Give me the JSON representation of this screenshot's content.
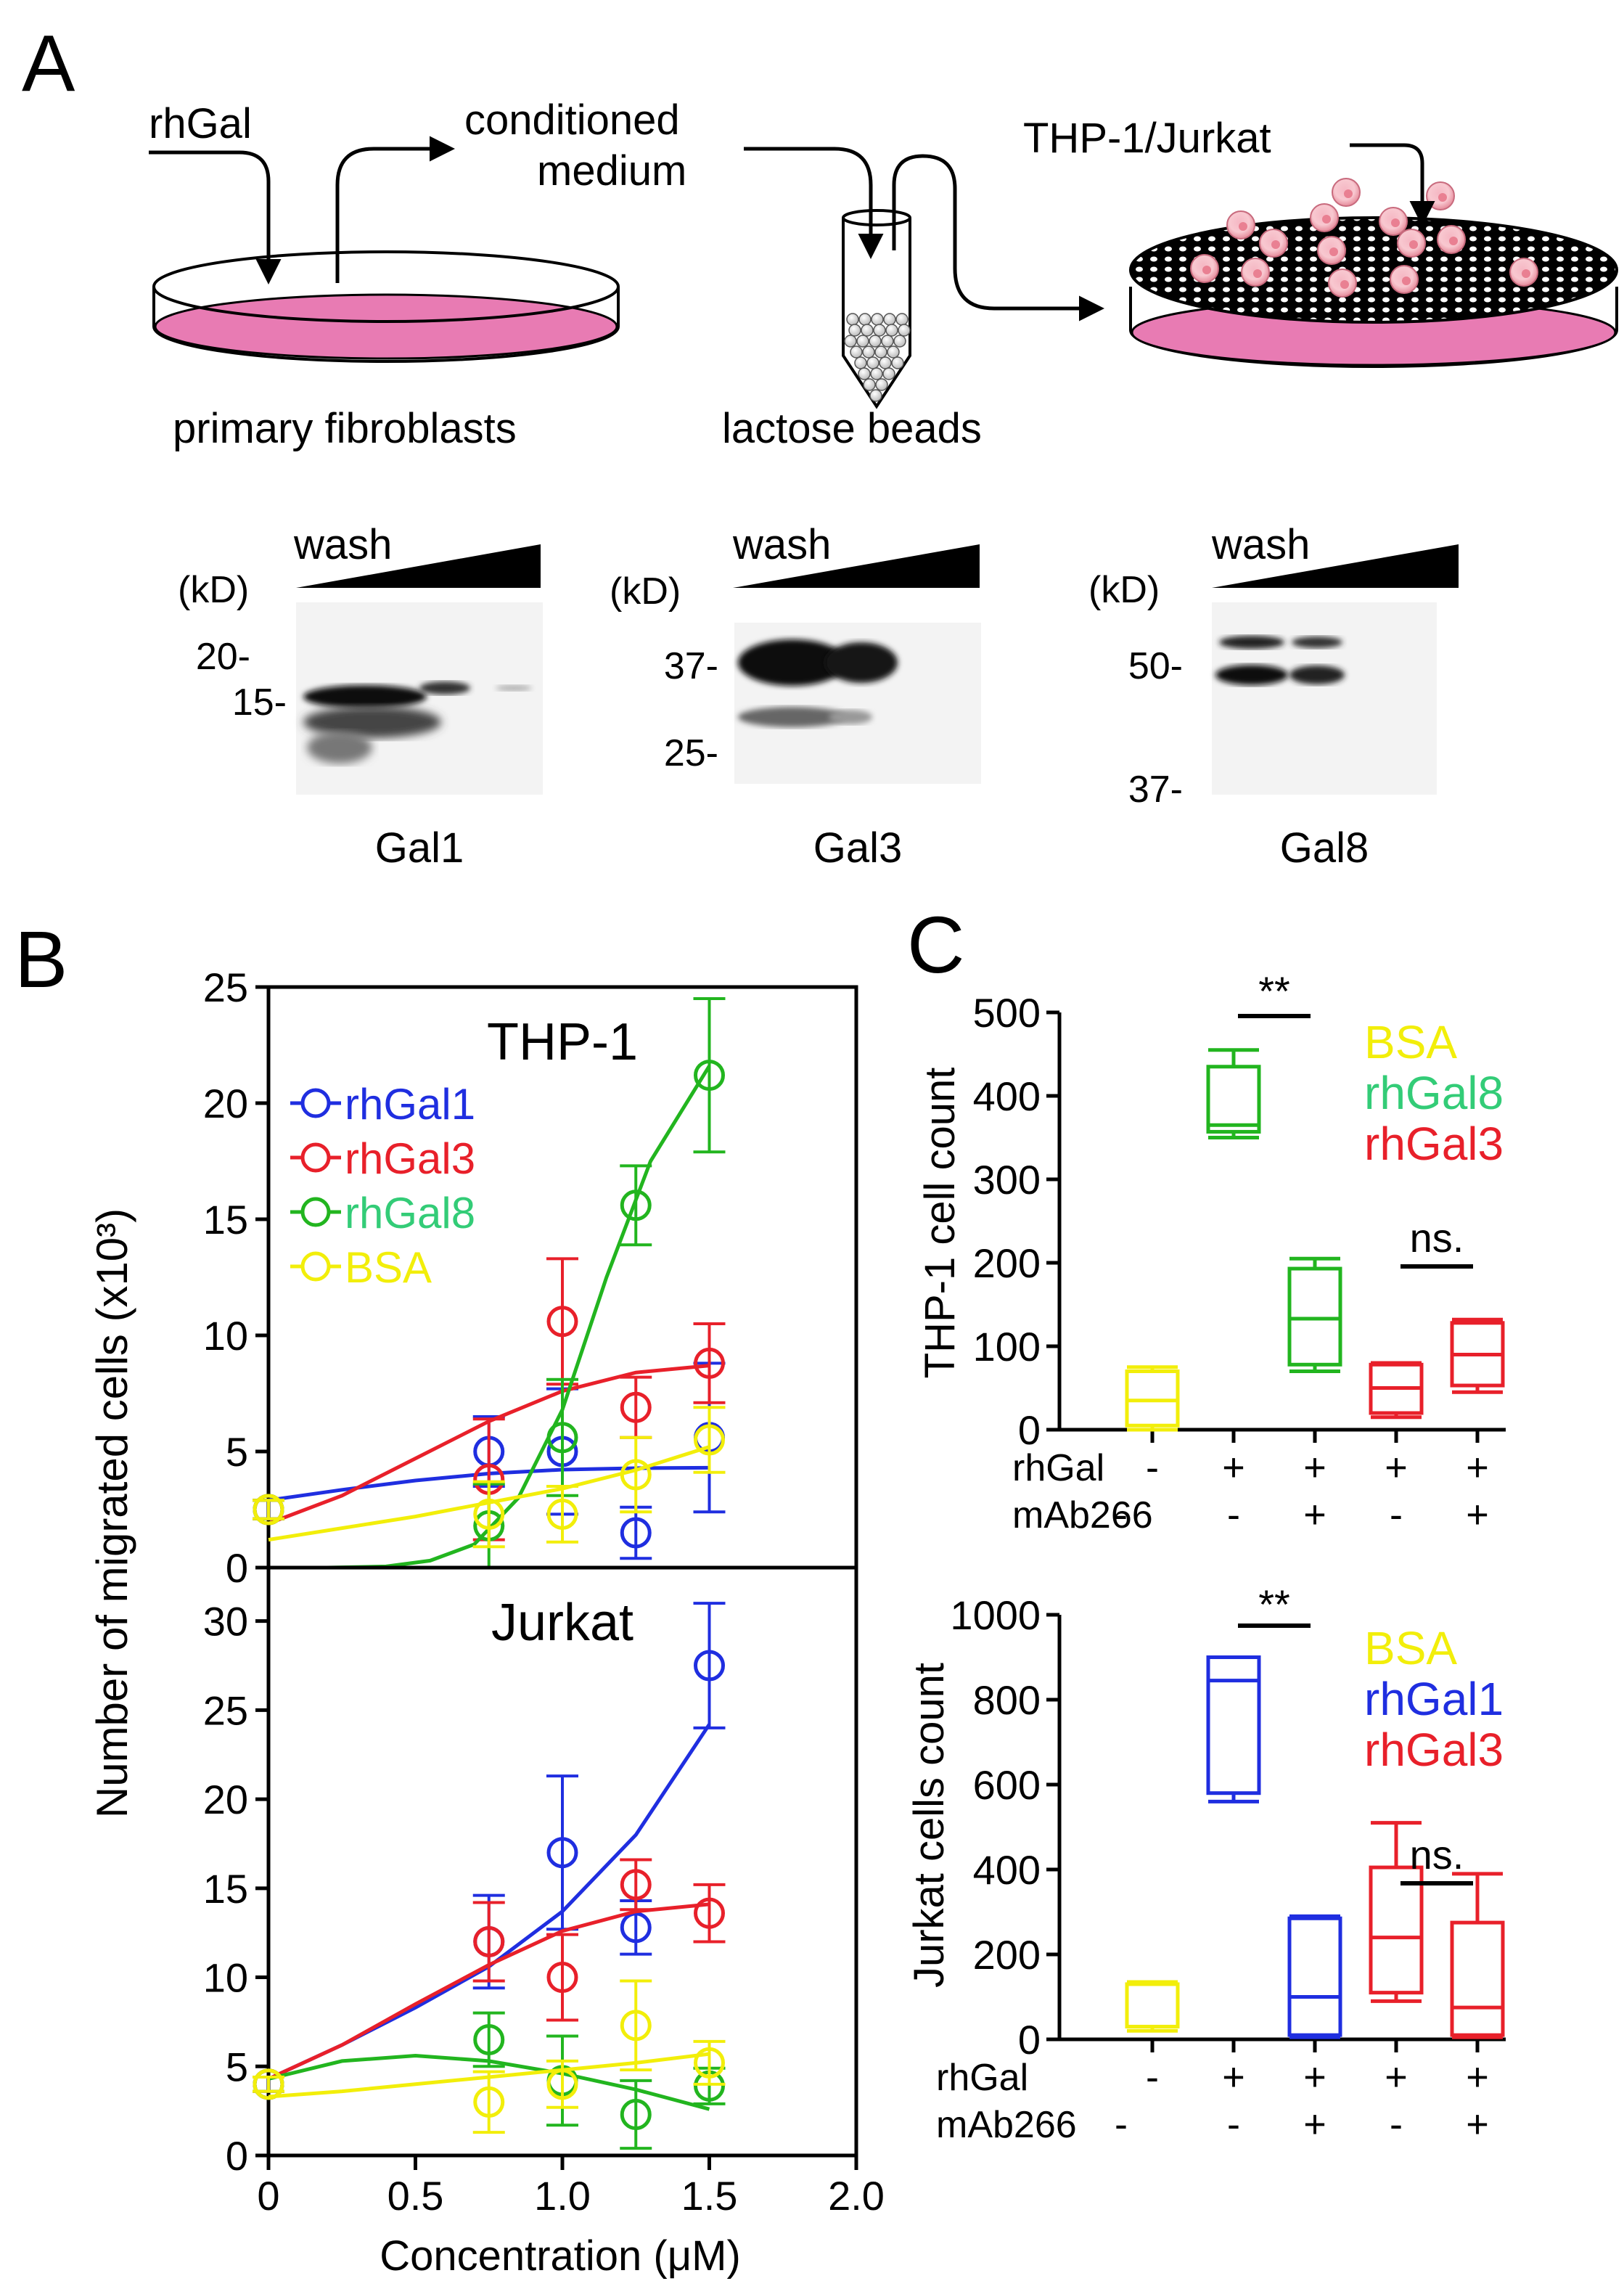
{
  "colors": {
    "blue": "#1f2ee0",
    "red": "#e8202a",
    "green": "#22b51f",
    "yellow": "#f2ee0a",
    "green_label": "#33cc77",
    "pink": "#e87bb3",
    "black": "#000000"
  },
  "panels": {
    "a": "A",
    "b": "B",
    "c": "C"
  },
  "schematic": {
    "rhgal": "rhGal",
    "conditioned_1": "conditioned",
    "conditioned_2": "medium",
    "cells": "THP-1/Jurkat",
    "fibroblasts": "primary fibroblasts",
    "beads": "lactose beads"
  },
  "blots": [
    {
      "name": "Gal1",
      "wash": "wash",
      "kd": "(kD)",
      "markers": [
        "20-",
        "15-"
      ]
    },
    {
      "name": "Gal3",
      "wash": "wash",
      "kd": "(kD)",
      "markers": [
        "37-",
        "25-"
      ]
    },
    {
      "name": "Gal8",
      "wash": "wash",
      "kd": "(kD)",
      "markers": [
        "50-",
        "37-"
      ]
    }
  ],
  "chart_data": [
    {
      "id": "B-top",
      "type": "scatter",
      "title": "THP-1",
      "ylabel": "Number of migrated cells (x10³)",
      "ylim": [
        0,
        25
      ],
      "yticks": [
        0,
        5,
        10,
        15,
        20,
        25
      ],
      "xlim": [
        0,
        2
      ],
      "series": [
        {
          "name": "rhGal1",
          "color": "#1f2ee0",
          "x": [
            0,
            0.75,
            1.0,
            1.25,
            1.5
          ],
          "y": [
            2.5,
            5.0,
            5.0,
            1.5,
            5.6
          ],
          "err": [
            0.4,
            1.5,
            2.7,
            1.1,
            3.2
          ],
          "fit_x": [
            0,
            0.25,
            0.5,
            0.75,
            1.0,
            1.25,
            1.5
          ],
          "fit_y": [
            2.9,
            3.35,
            3.75,
            4.05,
            4.22,
            4.28,
            4.3
          ]
        },
        {
          "name": "rhGal3",
          "color": "#e8202a",
          "x": [
            0,
            0.75,
            1.0,
            1.25,
            1.5
          ],
          "y": [
            2.5,
            3.8,
            10.6,
            6.9,
            8.8
          ],
          "err": [
            0.4,
            2.6,
            2.7,
            1.3,
            1.7
          ],
          "fit_x": [
            0,
            0.25,
            0.5,
            0.75,
            1.0,
            1.25,
            1.5
          ],
          "fit_y": [
            1.9,
            3.1,
            4.7,
            6.3,
            7.6,
            8.4,
            8.7
          ]
        },
        {
          "name": "rhGal8",
          "color": "#22b51f",
          "x": [
            0,
            0.75,
            1.0,
            1.25,
            1.5
          ],
          "y": [
            2.5,
            1.8,
            5.6,
            15.6,
            21.2
          ],
          "err": [
            0.4,
            1.8,
            2.5,
            1.7,
            3.3
          ],
          "fit_x": [
            0.2,
            0.4,
            0.55,
            0.7,
            0.85,
            1.0,
            1.15,
            1.3,
            1.5
          ],
          "fit_y": [
            0,
            0.05,
            0.3,
            1.0,
            3.0,
            6.8,
            12.5,
            17.5,
            21.6
          ]
        },
        {
          "name": "BSA",
          "color": "#f2ee0a",
          "x": [
            0,
            0.75,
            1.0,
            1.25,
            1.5
          ],
          "y": [
            2.5,
            2.3,
            2.3,
            4.0,
            5.5
          ],
          "err": [
            0.4,
            1.4,
            1.2,
            1.6,
            1.4
          ],
          "fit_x": [
            0,
            0.25,
            0.5,
            0.75,
            1.0,
            1.25,
            1.5
          ],
          "fit_y": [
            1.2,
            1.7,
            2.2,
            2.8,
            3.4,
            4.2,
            5.2
          ]
        }
      ]
    },
    {
      "id": "B-bottom",
      "type": "scatter",
      "title": "Jurkat",
      "xlabel": "Concentration (μM)",
      "ylim": [
        0,
        33
      ],
      "yticks": [
        0,
        5,
        10,
        15,
        20,
        25,
        30
      ],
      "xlim": [
        0,
        2
      ],
      "xticks": [
        0,
        0.5,
        1.0,
        1.5,
        2.0
      ],
      "xticklabels": [
        "0",
        "0.5",
        "1.0",
        "1.5",
        "2.0"
      ],
      "series": [
        {
          "name": "rhGal1",
          "color": "#1f2ee0",
          "x": [
            0,
            0.75,
            1.0,
            1.25,
            1.5
          ],
          "y": [
            4.0,
            12.0,
            17.0,
            12.8,
            27.5
          ],
          "err": [
            0.4,
            2.6,
            4.3,
            1.5,
            3.5
          ],
          "fit_x": [
            0,
            0.25,
            0.5,
            0.75,
            1.0,
            1.25,
            1.5
          ],
          "fit_y": [
            4.3,
            6.2,
            8.3,
            10.6,
            13.7,
            18.0,
            24.2
          ]
        },
        {
          "name": "rhGal3",
          "color": "#e8202a",
          "x": [
            0,
            0.75,
            1.0,
            1.25,
            1.5
          ],
          "y": [
            4.0,
            12.0,
            10.0,
            15.2,
            13.6
          ],
          "err": [
            0.4,
            2.2,
            2.4,
            1.4,
            1.6
          ],
          "fit_x": [
            0,
            0.25,
            0.5,
            0.75,
            1.0,
            1.25,
            1.5
          ],
          "fit_y": [
            4.3,
            6.2,
            8.5,
            10.7,
            12.6,
            13.7,
            14.1
          ]
        },
        {
          "name": "rhGal8",
          "color": "#22b51f",
          "x": [
            0,
            0.75,
            1.0,
            1.25,
            1.5
          ],
          "y": [
            4.0,
            6.5,
            4.2,
            2.3,
            3.9
          ],
          "err": [
            0.4,
            1.5,
            2.5,
            1.9,
            1.0
          ],
          "fit_x": [
            0,
            0.25,
            0.5,
            0.75,
            1.0,
            1.25,
            1.5
          ],
          "fit_y": [
            4.3,
            5.3,
            5.6,
            5.3,
            4.6,
            3.7,
            2.6
          ]
        },
        {
          "name": "BSA",
          "color": "#f2ee0a",
          "x": [
            0,
            0.75,
            1.0,
            1.25,
            1.5
          ],
          "y": [
            4.0,
            3.0,
            4.0,
            7.3,
            5.2
          ],
          "err": [
            0.4,
            1.7,
            1.3,
            2.5,
            1.2
          ],
          "fit_x": [
            0,
            0.25,
            0.5,
            0.75,
            1.0,
            1.25,
            1.5
          ],
          "fit_y": [
            3.3,
            3.6,
            4.0,
            4.4,
            4.8,
            5.2,
            5.7
          ]
        }
      ]
    },
    {
      "id": "C-top",
      "type": "box",
      "ylabel": "THP-1 cell count",
      "ylim": [
        0,
        500
      ],
      "yticks": [
        0,
        100,
        200,
        300,
        400,
        500
      ],
      "row_labels": [
        "rhGal",
        "mAb266"
      ],
      "categories": [
        [
          "-",
          "-"
        ],
        [
          "+",
          "-"
        ],
        [
          "+",
          "+"
        ],
        [
          "+",
          "-"
        ],
        [
          "+",
          "+"
        ]
      ],
      "boxes": [
        {
          "group": "BSA",
          "color": "#f2ee0a",
          "min": 0,
          "q1": 5,
          "median": 35,
          "q3": 70,
          "max": 75
        },
        {
          "group": "rhGal8",
          "color": "#22b51f",
          "min": 350,
          "q1": 357,
          "median": 365,
          "q3": 435,
          "max": 455
        },
        {
          "group": "rhGal8",
          "color": "#22b51f",
          "min": 70,
          "q1": 78,
          "median": 133,
          "q3": 193,
          "max": 205
        },
        {
          "group": "rhGal3",
          "color": "#e8202a",
          "min": 15,
          "q1": 20,
          "median": 50,
          "q3": 78,
          "max": 80
        },
        {
          "group": "rhGal3",
          "color": "#e8202a",
          "min": 45,
          "q1": 53,
          "median": 90,
          "q3": 128,
          "max": 132
        }
      ],
      "significance": [
        {
          "label": "**",
          "from": 1,
          "to": 2
        },
        {
          "label": "ns.",
          "from": 3,
          "to": 4
        }
      ],
      "legend": [
        {
          "label": "BSA",
          "color": "#f2ee0a"
        },
        {
          "label": "rhGal8",
          "color": "#33cc77"
        },
        {
          "label": "rhGal3",
          "color": "#e8202a"
        }
      ]
    },
    {
      "id": "C-bottom",
      "type": "box",
      "ylabel": "Jurkat cells count",
      "ylim": [
        0,
        1000
      ],
      "yticks": [
        0,
        200,
        400,
        600,
        800,
        1000
      ],
      "row_labels": [
        "rhGal",
        "mAb266"
      ],
      "categories": [
        [
          "-",
          "-"
        ],
        [
          "+",
          "-"
        ],
        [
          "+",
          "+"
        ],
        [
          "+",
          "-"
        ],
        [
          "+",
          "+"
        ]
      ],
      "boxes": [
        {
          "group": "BSA",
          "color": "#f2ee0a",
          "min": 20,
          "q1": 30,
          "median": 130,
          "q3": 130,
          "max": 135
        },
        {
          "group": "rhGal1",
          "color": "#1f2ee0",
          "min": 560,
          "q1": 580,
          "median": 845,
          "q3": 900,
          "max": 900
        },
        {
          "group": "rhGal1",
          "color": "#1f2ee0",
          "min": 5,
          "q1": 10,
          "median": 100,
          "q3": 285,
          "max": 290
        },
        {
          "group": "rhGal3",
          "color": "#e8202a",
          "min": 90,
          "q1": 110,
          "median": 240,
          "q3": 405,
          "max": 510
        },
        {
          "group": "rhGal3",
          "color": "#e8202a",
          "min": 5,
          "q1": 10,
          "median": 75,
          "q3": 275,
          "max": 390
        }
      ],
      "significance": [
        {
          "label": "**",
          "from": 1,
          "to": 2
        },
        {
          "label": "ns.",
          "from": 3,
          "to": 4
        }
      ],
      "legend": [
        {
          "label": "BSA",
          "color": "#f2ee0a"
        },
        {
          "label": "rhGal1",
          "color": "#1f2ee0"
        },
        {
          "label": "rhGal3",
          "color": "#e8202a"
        }
      ]
    }
  ]
}
